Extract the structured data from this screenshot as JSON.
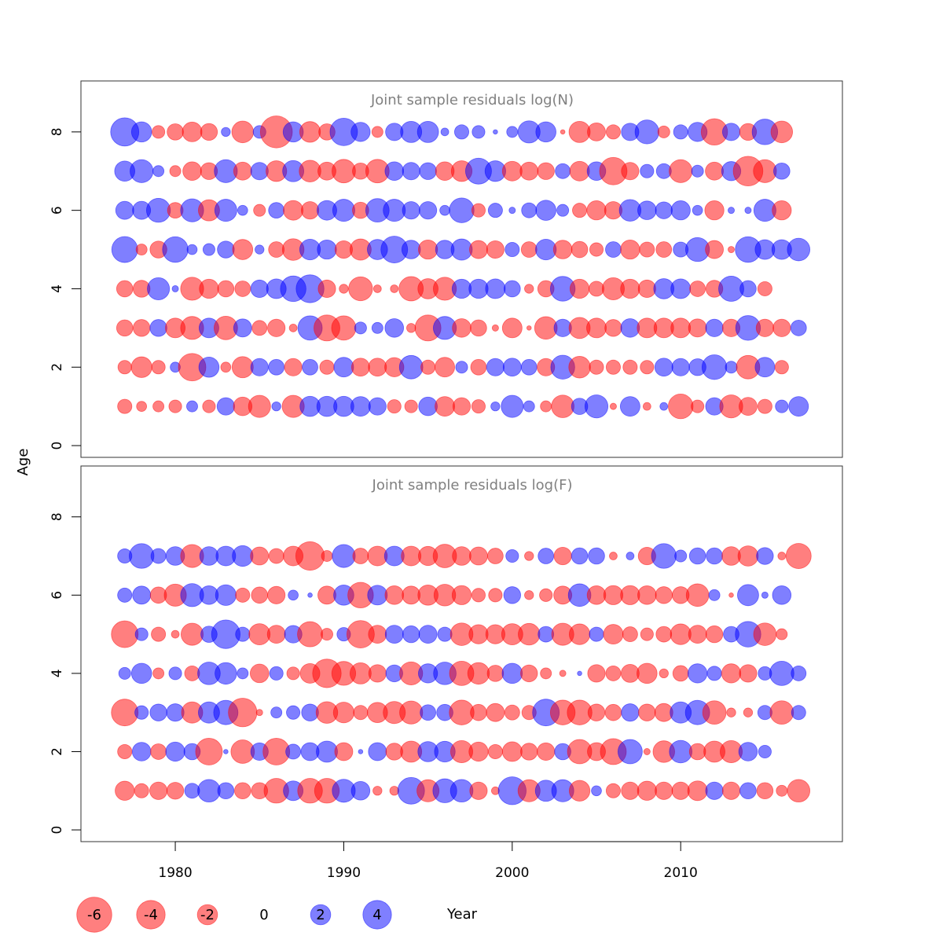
{
  "chart_data": [
    {
      "type": "scatter",
      "subtype": "bubble",
      "title": "Joint sample residuals log(N)",
      "x": [
        1977,
        1978,
        1979,
        1980,
        1981,
        1982,
        1983,
        1984,
        1985,
        1986,
        1987,
        1988,
        1989,
        1990,
        1991,
        1992,
        1993,
        1994,
        1995,
        1996,
        1997,
        1998,
        1999,
        2000,
        2001,
        2002,
        2003,
        2004,
        2005,
        2006,
        2007,
        2008,
        2009,
        2010,
        2011,
        2012,
        2013,
        2014,
        2015,
        2016,
        2017
      ],
      "ages": [
        1,
        2,
        3,
        4,
        5,
        6,
        7,
        8
      ],
      "residuals": [
        [
          -1.0,
          -0.5,
          -0.6,
          -0.8,
          0.6,
          -0.8,
          1.5,
          -1.7,
          -2.4,
          0.4,
          -2.4,
          2.0,
          2.0,
          2.0,
          1.9,
          1.5,
          -0.9,
          -0.8,
          1.7,
          -1.9,
          -1.5,
          -0.9,
          0.4,
          2.4,
          0.6,
          -0.6,
          -2.5,
          1.3,
          2.6,
          -0.2,
          1.9,
          -0.3,
          0.3,
          -3.0,
          -0.8,
          1.5,
          -2.6,
          -1.6,
          -1.0,
          0.8,
          1.9
        ],
        [
          -0.9,
          -2.1,
          -0.9,
          0.5,
          -3.7,
          2.0,
          -0.5,
          -2.2,
          1.5,
          1.2,
          -1.5,
          1.2,
          -1.0,
          1.9,
          -1.6,
          -1.6,
          -1.8,
          2.7,
          -1.0,
          -1.9,
          0.7,
          -1.2,
          1.5,
          1.6,
          1.2,
          -1.5,
          2.8,
          -2.3,
          -1.0,
          -1.0,
          -1.0,
          -0.9,
          1.6,
          1.5,
          1.4,
          3.0,
          0.7,
          -2.7,
          1.9,
          -0.9
        ],
        [
          -1.3,
          -1.4,
          1.4,
          -1.9,
          -2.6,
          1.9,
          -2.7,
          1.6,
          -1.1,
          -1.5,
          -0.3,
          2.9,
          -3.3,
          -2.9,
          0.7,
          0.6,
          1.7,
          -0.4,
          -3.3,
          2.6,
          -1.7,
          -1.3,
          -0.2,
          -1.9,
          -0.1,
          -2.5,
          1.5,
          -2.2,
          -1.9,
          -1.4,
          1.7,
          -1.9,
          -1.9,
          -1.9,
          -1.6,
          1.5,
          -1.5,
          3.0,
          -1.5,
          -1.5,
          1.2
        ],
        [
          -1.3,
          -1.4,
          2.4,
          0.2,
          -2.6,
          -1.8,
          -1.3,
          -1.2,
          1.5,
          1.9,
          3.2,
          3.8,
          -1.5,
          -0.4,
          -2.8,
          -0.3,
          -0.3,
          -2.9,
          -2.0,
          -2.6,
          1.8,
          1.8,
          1.9,
          1.3,
          -0.4,
          -1.3,
          3.0,
          -1.8,
          -1.1,
          -2.4,
          -1.8,
          -1.5,
          2.0,
          1.9,
          -1.2,
          -1.4,
          3.1,
          1.3,
          -1.0
        ],
        [
          3.3,
          -0.6,
          -1.4,
          3.2,
          0.5,
          0.7,
          1.4,
          -2.0,
          0.4,
          -1.2,
          -2.3,
          2.1,
          1.8,
          -1.5,
          -2.2,
          2.0,
          3.5,
          1.7,
          -1.8,
          1.7,
          2.2,
          -1.6,
          -1.5,
          1.0,
          -1.2,
          2.1,
          -1.7,
          -1.3,
          -0.9,
          1.2,
          -1.8,
          -1.1,
          -1.2,
          1.1,
          2.8,
          -1.6,
          -0.2,
          3.2,
          1.9,
          1.9,
          2.5
        ],
        [
          1.6,
          1.6,
          2.8,
          -1.2,
          2.6,
          -2.2,
          2.4,
          0.5,
          -0.7,
          1.2,
          -1.9,
          -1.5,
          1.9,
          2.4,
          -1.3,
          2.7,
          2.4,
          1.5,
          1.5,
          0.5,
          3.0,
          -0.9,
          1.0,
          0.2,
          1.1,
          2.0,
          0.7,
          -1.0,
          -1.8,
          -1.5,
          2.3,
          1.7,
          1.4,
          1.8,
          0.5,
          -1.8,
          0.2,
          0.2,
          2.4,
          -1.8
        ],
        [
          2.0,
          2.6,
          0.6,
          -0.6,
          -1.7,
          -1.4,
          2.6,
          -1.6,
          1.5,
          -2.1,
          2.2,
          -2.3,
          -1.6,
          -2.7,
          -1.3,
          -2.7,
          1.7,
          1.5,
          1.4,
          -1.7,
          -2.1,
          3.3,
          2.1,
          -1.9,
          -1.6,
          -1.4,
          1.1,
          -1.9,
          1.7,
          -3.7,
          -1.5,
          0.9,
          1.1,
          -2.6,
          0.7,
          -1.6,
          1.8,
          -4.3,
          -2.6,
          1.3
        ],
        [
          3.9,
          2.0,
          -0.8,
          -1.3,
          -1.9,
          -1.4,
          0.4,
          -2.3,
          0.8,
          -5.0,
          2.0,
          -2.1,
          -1.3,
          3.7,
          1.8,
          -0.6,
          1.5,
          2.2,
          2.2,
          0.3,
          1.0,
          0.8,
          0.1,
          0.6,
          2.4,
          2.0,
          -0.1,
          -2.2,
          -1.6,
          -1.0,
          1.5,
          2.8,
          -0.7,
          1.0,
          1.8,
          -3.4,
          1.5,
          -1.4,
          3.2,
          -2.3
        ]
      ],
      "xlim": [
        1974.4,
        2019.6
      ],
      "ylim": [
        -0.3,
        9.3
      ],
      "xticks": [
        "1980",
        "1990",
        "2000",
        "2010"
      ],
      "yticks": [
        "0",
        "2",
        "4",
        "6",
        "8"
      ],
      "colors": {
        "negative": "#ff0000",
        "positive": "#0000ff",
        "alpha": 0.5
      }
    },
    {
      "type": "scatter",
      "subtype": "bubble",
      "title": "Joint sample residuals log(F)",
      "x": [
        1977,
        1978,
        1979,
        1980,
        1981,
        1982,
        1983,
        1984,
        1985,
        1986,
        1987,
        1988,
        1989,
        1990,
        1991,
        1992,
        1993,
        1994,
        1995,
        1996,
        1997,
        1998,
        1999,
        2000,
        2001,
        2002,
        2003,
        2004,
        2005,
        2006,
        2007,
        2008,
        2009,
        2010,
        2011,
        2012,
        2013,
        2014,
        2015,
        2016,
        2017
      ],
      "ages": [
        1,
        2,
        3,
        4,
        5,
        6,
        7
      ],
      "residuals": [
        [
          -1.8,
          -1.0,
          -1.5,
          -1.4,
          1.1,
          2.5,
          1.3,
          -1.3,
          -1.3,
          -3.0,
          1.9,
          -3.0,
          -3.0,
          2.6,
          1.7,
          -0.4,
          -0.4,
          3.5,
          -2.4,
          2.8,
          2.5,
          -1.5,
          -0.3,
          3.8,
          -2.4,
          2.2,
          2.4,
          -2.1,
          0.5,
          -1.0,
          -1.5,
          -1.8,
          -1.5,
          -1.5,
          -1.9,
          1.5,
          -1.5,
          1.3,
          -1.3,
          -0.6,
          -2.5
        ],
        [
          -1.0,
          1.7,
          -1.2,
          1.8,
          1.3,
          -3.5,
          0.1,
          -2.7,
          1.5,
          -3.5,
          1.1,
          1.6,
          2.2,
          -1.6,
          0.1,
          1.6,
          -1.4,
          -2.2,
          2.0,
          2.1,
          -2.4,
          -1.8,
          -1.0,
          -1.9,
          -1.4,
          -1.5,
          1.3,
          -2.9,
          -1.6,
          -3.3,
          2.9,
          -0.2,
          -2.3,
          2.5,
          -1.3,
          -2.2,
          -2.4,
          1.7,
          0.8
        ],
        [
          -3.5,
          0.9,
          1.4,
          1.5,
          -2.2,
          2.2,
          2.9,
          -4.0,
          -0.2,
          0.6,
          0.9,
          1.4,
          -2.3,
          -2.1,
          -1.0,
          -2.0,
          -2.4,
          -2.6,
          1.2,
          1.3,
          -3.0,
          -1.3,
          -1.6,
          -1.1,
          -1.0,
          3.5,
          -3.0,
          -3.0,
          -1.4,
          -1.3,
          1.5,
          -1.4,
          -1.6,
          2.2,
          2.9,
          -2.7,
          -0.4,
          -0.4,
          1.0,
          -2.7,
          1.0
        ],
        [
          0.7,
          2.0,
          -0.6,
          0.8,
          -1.1,
          2.5,
          2.3,
          0.6,
          -1.7,
          0.9,
          -0.8,
          -1.9,
          -4.0,
          -2.8,
          -2.2,
          -1.5,
          1.4,
          -2.6,
          1.8,
          2.5,
          -2.9,
          -2.3,
          -1.3,
          2.0,
          -1.4,
          -0.6,
          -0.2,
          0.1,
          -1.5,
          -1.1,
          -1.6,
          -2.0,
          -0.4,
          -1.2,
          1.8,
          1.0,
          -1.8,
          -1.5,
          0.9,
          2.9,
          1.1
        ],
        [
          -3.5,
          0.8,
          -1.0,
          -0.3,
          -2.4,
          1.3,
          4.0,
          1.0,
          -2.2,
          -1.6,
          1.5,
          -3.1,
          -0.7,
          0.9,
          -3.7,
          -1.6,
          1.6,
          1.4,
          1.6,
          1.0,
          -2.5,
          -1.8,
          -1.8,
          -2.2,
          -2.3,
          1.2,
          -2.4,
          -2.1,
          1.0,
          -1.9,
          -1.1,
          -0.8,
          -1.2,
          -2.1,
          -1.6,
          -1.4,
          1.2,
          3.2,
          -2.5,
          -0.6
        ],
        [
          1.0,
          1.6,
          -1.3,
          -2.4,
          2.6,
          1.7,
          2.1,
          -1.0,
          -1.3,
          -1.5,
          0.5,
          0.1,
          -1.6,
          2.0,
          -3.2,
          1.9,
          -1.7,
          -1.6,
          -2.0,
          -2.3,
          -1.8,
          -0.9,
          -0.9,
          1.4,
          -0.4,
          -0.8,
          -1.6,
          2.5,
          -1.7,
          -1.8,
          -1.8,
          -1.7,
          -1.4,
          -1.4,
          -2.5,
          0.6,
          -0.1,
          2.2,
          0.2,
          1.7
        ],
        [
          1.0,
          3.0,
          1.1,
          1.7,
          -2.6,
          1.7,
          1.9,
          2.1,
          -1.6,
          -1.1,
          -1.9,
          -4.0,
          -0.6,
          2.6,
          -1.2,
          -1.9,
          1.9,
          -1.9,
          -1.8,
          -2.7,
          -1.7,
          -1.6,
          -1.2,
          0.8,
          -0.4,
          1.2,
          -1.5,
          1.3,
          1.3,
          -0.3,
          0.3,
          -1.5,
          3.0,
          0.7,
          1.3,
          1.3,
          -1.7,
          -2.0,
          1.4,
          -0.3,
          -3.1
        ]
      ],
      "xlim": [
        1974.4,
        2019.6
      ],
      "ylim": [
        -0.3,
        9.3
      ],
      "xticks": [
        "1980",
        "1990",
        "2000",
        "2010"
      ],
      "yticks": [
        "0",
        "2",
        "4",
        "6",
        "8"
      ],
      "colors": {
        "negative": "#ff0000",
        "positive": "#0000ff",
        "alpha": 0.5
      }
    }
  ],
  "axes": {
    "xlabel": "Year",
    "ylabel": "Age"
  },
  "legend": {
    "placement": "bottom",
    "items": [
      {
        "label": "-6",
        "value": -6
      },
      {
        "label": "-4",
        "value": -4
      },
      {
        "label": "-2",
        "value": -2
      },
      {
        "label": "0",
        "value": 0
      },
      {
        "label": "2",
        "value": 2
      },
      {
        "label": "4",
        "value": 4
      }
    ],
    "xlabel": "Year"
  }
}
